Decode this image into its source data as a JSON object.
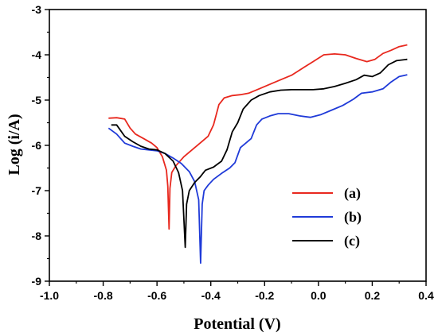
{
  "chart_data": {
    "type": "line",
    "title": "",
    "xlabel": "Potential (V)",
    "ylabel": "Log (i/A)",
    "xlim": [
      -1.0,
      0.4
    ],
    "ylim": [
      -9,
      -3
    ],
    "xticks": [
      -1.0,
      -0.8,
      -0.6,
      -0.4,
      -0.2,
      0.0,
      0.2,
      0.4
    ],
    "xtick_labels": [
      "-1.0",
      "-0.8",
      "-0.6",
      "-0.4",
      "-0.2",
      "0.0",
      "0.2",
      "0.4"
    ],
    "yticks": [
      -9,
      -8,
      -7,
      -6,
      -5,
      -4,
      -3
    ],
    "ytick_labels": [
      "-9",
      "-8",
      "-7",
      "-6",
      "-5",
      "-4",
      "-3"
    ],
    "grid": false,
    "legend_position": "lower-right",
    "series": [
      {
        "name": "(a)",
        "color": "#e8281e",
        "points": [
          [
            -0.78,
            -5.4
          ],
          [
            -0.75,
            -5.39
          ],
          [
            -0.72,
            -5.42
          ],
          [
            -0.7,
            -5.62
          ],
          [
            -0.68,
            -5.75
          ],
          [
            -0.65,
            -5.85
          ],
          [
            -0.62,
            -5.95
          ],
          [
            -0.6,
            -6.05
          ],
          [
            -0.58,
            -6.25
          ],
          [
            -0.565,
            -6.55
          ],
          [
            -0.56,
            -6.9
          ],
          [
            -0.555,
            -7.85
          ],
          [
            -0.552,
            -6.95
          ],
          [
            -0.545,
            -6.6
          ],
          [
            -0.53,
            -6.45
          ],
          [
            -0.5,
            -6.25
          ],
          [
            -0.47,
            -6.1
          ],
          [
            -0.44,
            -5.95
          ],
          [
            -0.41,
            -5.8
          ],
          [
            -0.39,
            -5.55
          ],
          [
            -0.37,
            -5.1
          ],
          [
            -0.35,
            -4.95
          ],
          [
            -0.32,
            -4.9
          ],
          [
            -0.29,
            -4.88
          ],
          [
            -0.26,
            -4.85
          ],
          [
            -0.22,
            -4.75
          ],
          [
            -0.18,
            -4.65
          ],
          [
            -0.14,
            -4.55
          ],
          [
            -0.1,
            -4.45
          ],
          [
            -0.06,
            -4.3
          ],
          [
            -0.02,
            -4.15
          ],
          [
            0.02,
            -4.0
          ],
          [
            0.06,
            -3.98
          ],
          [
            0.1,
            -4.0
          ],
          [
            0.14,
            -4.08
          ],
          [
            0.18,
            -4.15
          ],
          [
            0.21,
            -4.1
          ],
          [
            0.24,
            -3.97
          ],
          [
            0.27,
            -3.9
          ],
          [
            0.3,
            -3.82
          ],
          [
            0.33,
            -3.78
          ]
        ]
      },
      {
        "name": "(b)",
        "color": "#1f3ad8",
        "points": [
          [
            -0.78,
            -5.62
          ],
          [
            -0.75,
            -5.75
          ],
          [
            -0.72,
            -5.95
          ],
          [
            -0.69,
            -6.02
          ],
          [
            -0.66,
            -6.08
          ],
          [
            -0.63,
            -6.1
          ],
          [
            -0.6,
            -6.12
          ],
          [
            -0.57,
            -6.18
          ],
          [
            -0.54,
            -6.28
          ],
          [
            -0.51,
            -6.4
          ],
          [
            -0.48,
            -6.58
          ],
          [
            -0.46,
            -6.8
          ],
          [
            -0.445,
            -7.2
          ],
          [
            -0.438,
            -8.6
          ],
          [
            -0.432,
            -7.3
          ],
          [
            -0.425,
            -7.0
          ],
          [
            -0.41,
            -6.88
          ],
          [
            -0.39,
            -6.75
          ],
          [
            -0.36,
            -6.62
          ],
          [
            -0.33,
            -6.5
          ],
          [
            -0.31,
            -6.38
          ],
          [
            -0.29,
            -6.05
          ],
          [
            -0.27,
            -5.95
          ],
          [
            -0.25,
            -5.85
          ],
          [
            -0.23,
            -5.55
          ],
          [
            -0.21,
            -5.42
          ],
          [
            -0.18,
            -5.35
          ],
          [
            -0.15,
            -5.3
          ],
          [
            -0.11,
            -5.3
          ],
          [
            -0.07,
            -5.35
          ],
          [
            -0.03,
            -5.38
          ],
          [
            0.01,
            -5.32
          ],
          [
            0.05,
            -5.22
          ],
          [
            0.09,
            -5.12
          ],
          [
            0.13,
            -4.98
          ],
          [
            0.16,
            -4.85
          ],
          [
            0.2,
            -4.82
          ],
          [
            0.24,
            -4.75
          ],
          [
            0.27,
            -4.6
          ],
          [
            0.3,
            -4.48
          ],
          [
            0.33,
            -4.44
          ]
        ]
      },
      {
        "name": "(c)",
        "color": "#000000",
        "points": [
          [
            -0.77,
            -5.55
          ],
          [
            -0.75,
            -5.55
          ],
          [
            -0.72,
            -5.8
          ],
          [
            -0.69,
            -5.92
          ],
          [
            -0.66,
            -6.02
          ],
          [
            -0.63,
            -6.08
          ],
          [
            -0.6,
            -6.1
          ],
          [
            -0.57,
            -6.18
          ],
          [
            -0.54,
            -6.35
          ],
          [
            -0.52,
            -6.6
          ],
          [
            -0.505,
            -7.0
          ],
          [
            -0.495,
            -8.25
          ],
          [
            -0.49,
            -7.3
          ],
          [
            -0.48,
            -7.0
          ],
          [
            -0.46,
            -6.82
          ],
          [
            -0.44,
            -6.7
          ],
          [
            -0.42,
            -6.55
          ],
          [
            -0.39,
            -6.48
          ],
          [
            -0.36,
            -6.35
          ],
          [
            -0.34,
            -6.1
          ],
          [
            -0.32,
            -5.7
          ],
          [
            -0.3,
            -5.5
          ],
          [
            -0.28,
            -5.2
          ],
          [
            -0.25,
            -5.0
          ],
          [
            -0.22,
            -4.9
          ],
          [
            -0.18,
            -4.82
          ],
          [
            -0.14,
            -4.78
          ],
          [
            -0.1,
            -4.77
          ],
          [
            -0.06,
            -4.77
          ],
          [
            -0.02,
            -4.77
          ],
          [
            0.02,
            -4.75
          ],
          [
            0.06,
            -4.7
          ],
          [
            0.1,
            -4.63
          ],
          [
            0.14,
            -4.55
          ],
          [
            0.17,
            -4.45
          ],
          [
            0.2,
            -4.48
          ],
          [
            0.23,
            -4.4
          ],
          [
            0.26,
            -4.22
          ],
          [
            0.29,
            -4.13
          ],
          [
            0.33,
            -4.1
          ]
        ]
      }
    ]
  }
}
